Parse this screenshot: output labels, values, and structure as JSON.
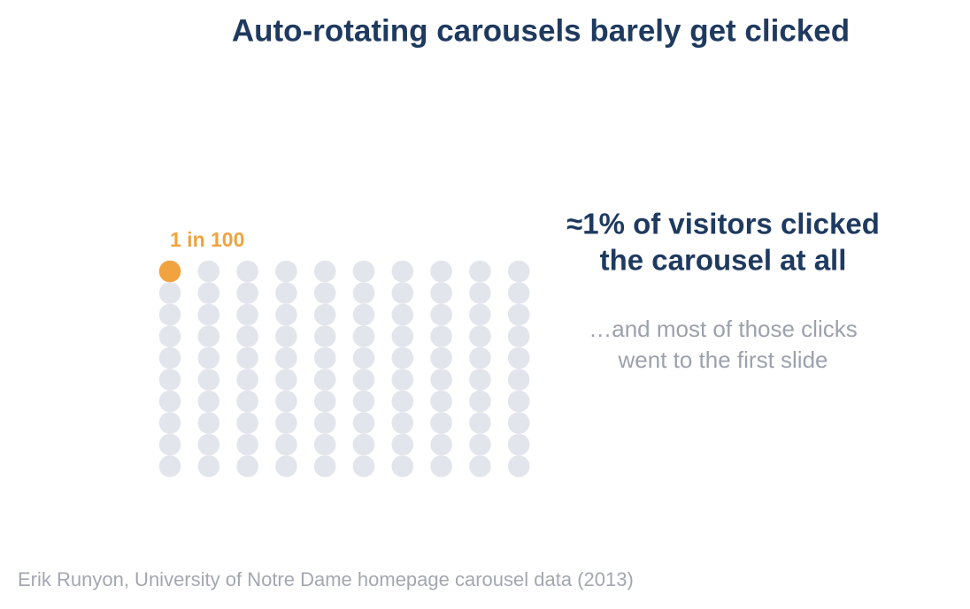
{
  "chart_data": {
    "type": "waffle",
    "title": "Auto-rotating carousels barely get clicked",
    "highlight_label": "1 in 100",
    "highlighted": 1,
    "total": 100,
    "columns": 10,
    "highlight_color": "#f0a33f",
    "base_color": "#e3e5ec",
    "headline": [
      "≈1% of visitors clicked",
      "the carousel at all"
    ],
    "subtext": [
      "…and most of those clicks",
      "went to the first slide"
    ],
    "source": "Erik Runyon, University of Notre Dame homepage carousel data (2013)"
  }
}
